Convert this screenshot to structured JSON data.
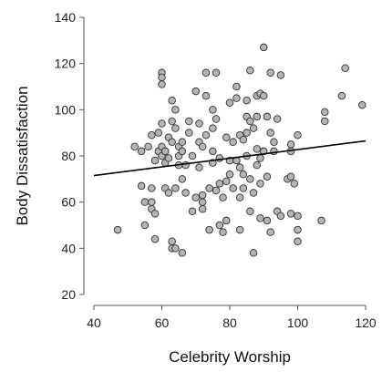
{
  "chart_data": {
    "type": "scatter",
    "title": "",
    "xlabel": "Celebrity Worship",
    "ylabel": "Body Dissatisfaction",
    "xlim": [
      40,
      120
    ],
    "ylim": [
      20,
      140
    ],
    "xticks": [
      40,
      60,
      80,
      100,
      120
    ],
    "yticks": [
      20,
      40,
      60,
      80,
      100,
      120,
      140
    ],
    "grid": false,
    "legend": "none",
    "point_color": "#b5b5b5",
    "point_edge_color": "#333333",
    "trendline": {
      "x": [
        40,
        120
      ],
      "y": [
        71.5,
        86.5
      ],
      "color": "#000000"
    },
    "points": [
      {
        "x": 47,
        "y": 48
      },
      {
        "x": 52,
        "y": 84
      },
      {
        "x": 54,
        "y": 82
      },
      {
        "x": 54,
        "y": 67
      },
      {
        "x": 55,
        "y": 60
      },
      {
        "x": 55,
        "y": 50
      },
      {
        "x": 56,
        "y": 84
      },
      {
        "x": 57,
        "y": 66
      },
      {
        "x": 57,
        "y": 60
      },
      {
        "x": 57,
        "y": 57
      },
      {
        "x": 57,
        "y": 89
      },
      {
        "x": 58,
        "y": 78
      },
      {
        "x": 58,
        "y": 55
      },
      {
        "x": 58,
        "y": 44
      },
      {
        "x": 59,
        "y": 82
      },
      {
        "x": 59,
        "y": 90
      },
      {
        "x": 60,
        "y": 116
      },
      {
        "x": 60,
        "y": 114
      },
      {
        "x": 60,
        "y": 111
      },
      {
        "x": 60,
        "y": 94
      },
      {
        "x": 60,
        "y": 84
      },
      {
        "x": 60,
        "y": 80
      },
      {
        "x": 61,
        "y": 82
      },
      {
        "x": 61,
        "y": 77
      },
      {
        "x": 61,
        "y": 66
      },
      {
        "x": 62,
        "y": 88
      },
      {
        "x": 62,
        "y": 79
      },
      {
        "x": 62,
        "y": 64
      },
      {
        "x": 63,
        "y": 104
      },
      {
        "x": 63,
        "y": 95
      },
      {
        "x": 63,
        "y": 86
      },
      {
        "x": 63,
        "y": 43
      },
      {
        "x": 63,
        "y": 40
      },
      {
        "x": 64,
        "y": 100
      },
      {
        "x": 64,
        "y": 92
      },
      {
        "x": 64,
        "y": 66
      },
      {
        "x": 64,
        "y": 40
      },
      {
        "x": 65,
        "y": 84
      },
      {
        "x": 65,
        "y": 80
      },
      {
        "x": 65,
        "y": 76
      },
      {
        "x": 66,
        "y": 86
      },
      {
        "x": 66,
        "y": 82
      },
      {
        "x": 66,
        "y": 70
      },
      {
        "x": 66,
        "y": 38
      },
      {
        "x": 67,
        "y": 76
      },
      {
        "x": 67,
        "y": 64
      },
      {
        "x": 68,
        "y": 95
      },
      {
        "x": 68,
        "y": 90
      },
      {
        "x": 69,
        "y": 80
      },
      {
        "x": 69,
        "y": 56
      },
      {
        "x": 70,
        "y": 108
      },
      {
        "x": 70,
        "y": 62
      },
      {
        "x": 71,
        "y": 94
      },
      {
        "x": 71,
        "y": 86
      },
      {
        "x": 71,
        "y": 75
      },
      {
        "x": 72,
        "y": 84
      },
      {
        "x": 72,
        "y": 63
      },
      {
        "x": 72,
        "y": 60
      },
      {
        "x": 72,
        "y": 57
      },
      {
        "x": 73,
        "y": 116
      },
      {
        "x": 73,
        "y": 106
      },
      {
        "x": 73,
        "y": 89
      },
      {
        "x": 74,
        "y": 66
      },
      {
        "x": 74,
        "y": 48
      },
      {
        "x": 75,
        "y": 100
      },
      {
        "x": 75,
        "y": 92
      },
      {
        "x": 75,
        "y": 82
      },
      {
        "x": 75,
        "y": 77
      },
      {
        "x": 76,
        "y": 116
      },
      {
        "x": 76,
        "y": 96
      },
      {
        "x": 76,
        "y": 65
      },
      {
        "x": 77,
        "y": 79
      },
      {
        "x": 77,
        "y": 68
      },
      {
        "x": 77,
        "y": 50
      },
      {
        "x": 78,
        "y": 62
      },
      {
        "x": 78,
        "y": 47
      },
      {
        "x": 79,
        "y": 88
      },
      {
        "x": 79,
        "y": 69
      },
      {
        "x": 79,
        "y": 52
      },
      {
        "x": 80,
        "y": 103
      },
      {
        "x": 80,
        "y": 78
      },
      {
        "x": 80,
        "y": 72
      },
      {
        "x": 81,
        "y": 86
      },
      {
        "x": 81,
        "y": 66
      },
      {
        "x": 82,
        "y": 110
      },
      {
        "x": 82,
        "y": 105
      },
      {
        "x": 82,
        "y": 78
      },
      {
        "x": 83,
        "y": 89
      },
      {
        "x": 83,
        "y": 75
      },
      {
        "x": 83,
        "y": 62
      },
      {
        "x": 83,
        "y": 48
      },
      {
        "x": 84,
        "y": 87
      },
      {
        "x": 84,
        "y": 72
      },
      {
        "x": 84,
        "y": 66
      },
      {
        "x": 85,
        "y": 104
      },
      {
        "x": 85,
        "y": 97
      },
      {
        "x": 85,
        "y": 90
      },
      {
        "x": 85,
        "y": 80
      },
      {
        "x": 86,
        "y": 117
      },
      {
        "x": 86,
        "y": 95
      },
      {
        "x": 86,
        "y": 70
      },
      {
        "x": 86,
        "y": 56
      },
      {
        "x": 87,
        "y": 92
      },
      {
        "x": 87,
        "y": 64
      },
      {
        "x": 87,
        "y": 38
      },
      {
        "x": 88,
        "y": 106
      },
      {
        "x": 88,
        "y": 97
      },
      {
        "x": 88,
        "y": 83
      },
      {
        "x": 88,
        "y": 76
      },
      {
        "x": 89,
        "y": 107
      },
      {
        "x": 89,
        "y": 79
      },
      {
        "x": 89,
        "y": 68
      },
      {
        "x": 89,
        "y": 53
      },
      {
        "x": 90,
        "y": 127
      },
      {
        "x": 90,
        "y": 106
      },
      {
        "x": 90,
        "y": 82
      },
      {
        "x": 91,
        "y": 97
      },
      {
        "x": 91,
        "y": 71
      },
      {
        "x": 91,
        "y": 52
      },
      {
        "x": 92,
        "y": 116
      },
      {
        "x": 92,
        "y": 90
      },
      {
        "x": 92,
        "y": 47
      },
      {
        "x": 93,
        "y": 86
      },
      {
        "x": 93,
        "y": 82
      },
      {
        "x": 94,
        "y": 96
      },
      {
        "x": 94,
        "y": 56
      },
      {
        "x": 95,
        "y": 115
      },
      {
        "x": 95,
        "y": 54
      },
      {
        "x": 97,
        "y": 70
      },
      {
        "x": 98,
        "y": 85
      },
      {
        "x": 98,
        "y": 82
      },
      {
        "x": 98,
        "y": 71
      },
      {
        "x": 98,
        "y": 55
      },
      {
        "x": 99,
        "y": 68
      },
      {
        "x": 100,
        "y": 89
      },
      {
        "x": 100,
        "y": 54
      },
      {
        "x": 100,
        "y": 48
      },
      {
        "x": 100,
        "y": 43
      },
      {
        "x": 107,
        "y": 52
      },
      {
        "x": 108,
        "y": 99
      },
      {
        "x": 108,
        "y": 95
      },
      {
        "x": 113,
        "y": 106
      },
      {
        "x": 114,
        "y": 118
      },
      {
        "x": 119,
        "y": 102
      }
    ]
  }
}
